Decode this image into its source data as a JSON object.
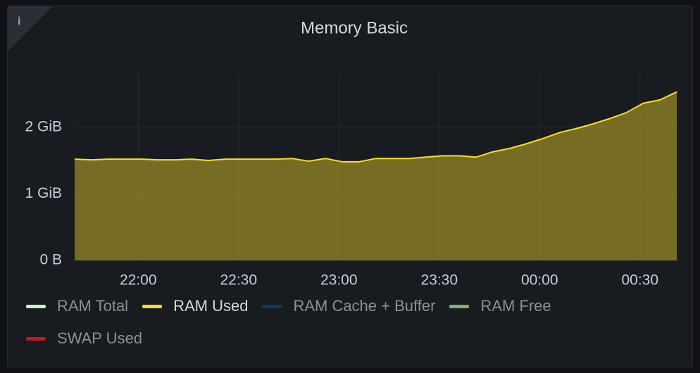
{
  "chart_data": {
    "type": "area",
    "title": "Memory Basic",
    "x": [
      "21:41",
      "21:46",
      "21:51",
      "21:56",
      "22:01",
      "22:06",
      "22:11",
      "22:16",
      "22:21",
      "22:26",
      "22:31",
      "22:36",
      "22:41",
      "22:46",
      "22:51",
      "22:56",
      "23:01",
      "23:06",
      "23:11",
      "23:16",
      "23:21",
      "23:26",
      "23:31",
      "23:36",
      "23:41",
      "23:46",
      "23:51",
      "23:56",
      "00:01",
      "00:06",
      "00:11",
      "00:16",
      "00:21",
      "00:26",
      "00:31",
      "00:36",
      "00:41"
    ],
    "series": [
      {
        "name": "RAM Used",
        "color": "#fade2a",
        "values": [
          1.52,
          1.51,
          1.52,
          1.52,
          1.52,
          1.51,
          1.51,
          1.52,
          1.5,
          1.52,
          1.52,
          1.52,
          1.52,
          1.53,
          1.49,
          1.53,
          1.48,
          1.48,
          1.53,
          1.53,
          1.53,
          1.55,
          1.57,
          1.57,
          1.55,
          1.63,
          1.68,
          1.75,
          1.83,
          1.92,
          1.98,
          2.05,
          2.13,
          2.22,
          2.36,
          2.41,
          2.53
        ]
      }
    ],
    "legend": [
      {
        "name": "RAM Total",
        "color": "#c8f2c2",
        "active": false
      },
      {
        "name": "RAM Used",
        "color": "#fade2a",
        "active": true
      },
      {
        "name": "RAM Cache + Buffer",
        "color": "#0a3b66",
        "active": false
      },
      {
        "name": "RAM Free",
        "color": "#7eb26d",
        "active": false
      },
      {
        "name": "SWAP Used",
        "color": "#c4162a",
        "active": false
      }
    ],
    "xticks": [
      "22:00",
      "22:30",
      "23:00",
      "23:30",
      "00:00",
      "00:30"
    ],
    "ylim": [
      0,
      2.8
    ],
    "yticks": [
      {
        "value": 0,
        "label": "0 B"
      },
      {
        "value": 1,
        "label": "1 GiB"
      },
      {
        "value": 2,
        "label": "2 GiB"
      }
    ],
    "grid": true
  }
}
